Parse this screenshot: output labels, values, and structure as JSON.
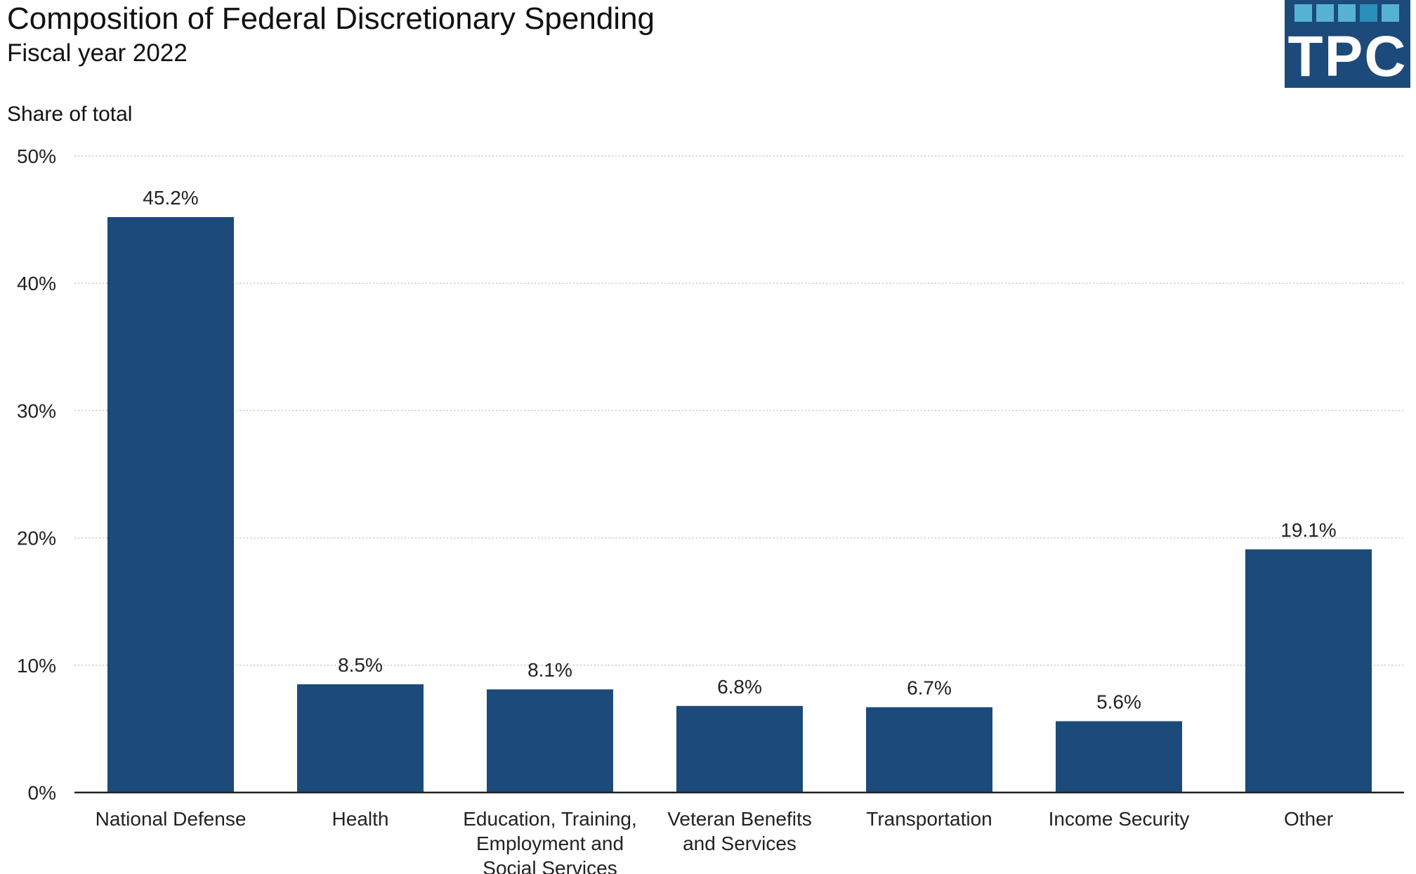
{
  "chart_data": {
    "type": "bar",
    "title": "Composition of Federal Discretionary Spending",
    "subtitle": "Fiscal year 2022",
    "ylabel": "Share of total",
    "xlabel": "",
    "ylim": [
      0,
      50
    ],
    "yticks": [
      0,
      10,
      20,
      30,
      40,
      50
    ],
    "ytick_labels": [
      "0%",
      "10%",
      "20%",
      "30%",
      "40%",
      "50%"
    ],
    "grid": true,
    "categories": [
      [
        "National Defense"
      ],
      [
        "Health"
      ],
      [
        "Education, Training,",
        "Employment and",
        "Social Services"
      ],
      [
        "Veteran Benefits",
        "and Services"
      ],
      [
        "Transportation"
      ],
      [
        "Income Security"
      ],
      [
        "Other"
      ]
    ],
    "values": [
      45.2,
      8.5,
      8.1,
      6.8,
      6.7,
      5.6,
      19.1
    ],
    "data_labels": [
      "45.2%",
      "8.5%",
      "8.1%",
      "6.8%",
      "6.7%",
      "5.6%",
      "19.1%"
    ],
    "bar_color": "#1c4a7a"
  },
  "logo": {
    "text": "TPC"
  }
}
